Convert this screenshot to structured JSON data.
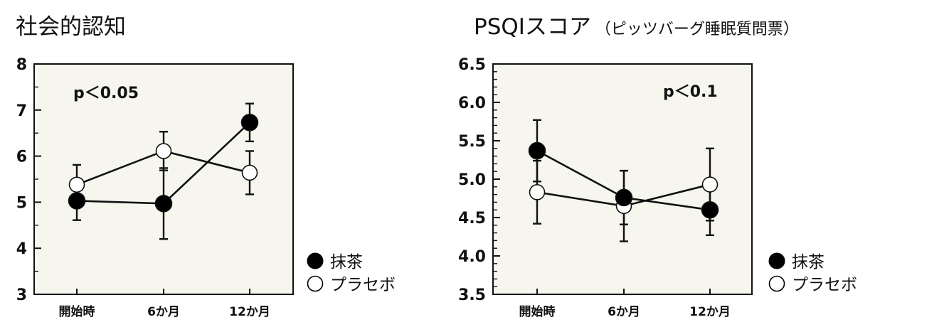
{
  "colors": {
    "plot_background": "#f6f6ee",
    "ink": "#111111",
    "filled_marker": "#000000",
    "open_marker": "#ffffff"
  },
  "legend": {
    "items": [
      {
        "label": "抹茶",
        "marker": "filled-circle"
      },
      {
        "label": "プラセボ",
        "marker": "open-circle"
      }
    ]
  },
  "chart_data": [
    {
      "type": "line",
      "title": "社会的認知",
      "subtitle": "",
      "annotation": "p＜0.05",
      "categories": [
        "開始時",
        "6か月",
        "12か月"
      ],
      "ylim": [
        3,
        8
      ],
      "yticks": [
        "3",
        "4",
        "5",
        "6",
        "7",
        "8"
      ],
      "grid": false,
      "legend_position": "right",
      "series": [
        {
          "name": "抹茶",
          "marker": "filled",
          "values": [
            5.03,
            4.97,
            6.73
          ],
          "error": [
            0.42,
            0.77,
            0.41
          ]
        },
        {
          "name": "プラセボ",
          "marker": "open",
          "values": [
            5.38,
            6.11,
            5.64
          ],
          "error": [
            0.43,
            0.42,
            0.47
          ]
        }
      ]
    },
    {
      "type": "line",
      "title": "PSQIスコア",
      "subtitle": "（ピッツバーグ睡眠質問票）",
      "annotation": "p＜0.1",
      "categories": [
        "開始時",
        "6か月",
        "12か月"
      ],
      "ylim": [
        3.5,
        6.5
      ],
      "yticks": [
        "3.5",
        "4.0",
        "4.5",
        "5.0",
        "5.5",
        "6.0",
        "6.5"
      ],
      "grid": false,
      "legend_position": "right",
      "series": [
        {
          "name": "抹茶",
          "marker": "filled",
          "values": [
            5.37,
            4.76,
            4.6
          ],
          "error": [
            0.4,
            0.35,
            0.33
          ]
        },
        {
          "name": "プラセボ",
          "marker": "open",
          "values": [
            4.83,
            4.65,
            4.93
          ],
          "error": [
            0.41,
            0.46,
            0.47
          ]
        }
      ]
    }
  ]
}
